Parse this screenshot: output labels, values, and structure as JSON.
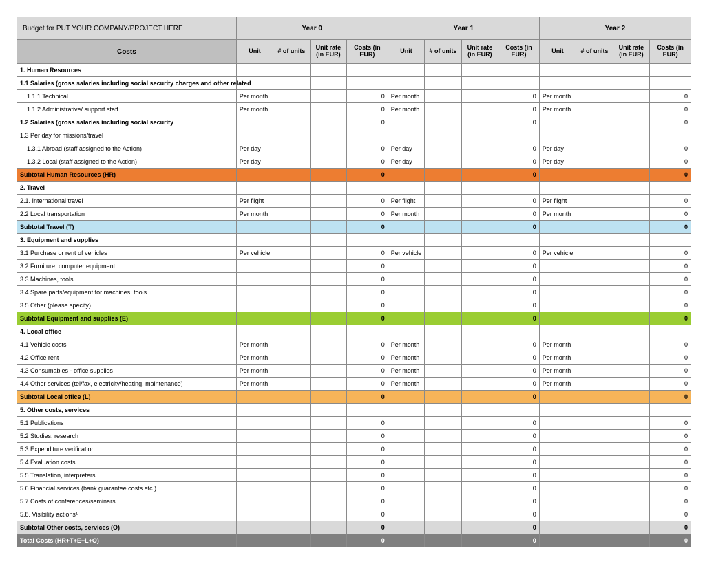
{
  "title": "Budget for PUT YOUR COMPANY/PROJECT HERE",
  "years": [
    "Year 0",
    "Year 1",
    "Year 2"
  ],
  "costs_header": "Costs",
  "sub_headers": [
    "Unit",
    "# of units",
    "Unit rate (in EUR)",
    "Costs (in EUR)"
  ],
  "zero": "0",
  "colors": {
    "header_light": "#d9d9d9",
    "header_dark": "#bfbfbf",
    "hr": "#ed7d31",
    "travel": "#bde2f2",
    "equip": "#9acd32",
    "local": "#f6b459",
    "other": "#d9d9d9",
    "total": "#808080",
    "border": "#8a8a8a"
  },
  "units": {
    "per_month": "Per month",
    "per_day": "Per day",
    "per_flight": "Per flight",
    "per_vehicle": "Per vehicle"
  },
  "rows": {
    "s1": "1. Human Resources",
    "s11": "1.1 Salaries (gross salaries including social security charges and other related",
    "s111": "1.1.1 Technical",
    "s112": "1.1.2 Administrative/ support staff",
    "s12": "1.2 Salaries (gross salaries including social security",
    "s13": "1.3 Per day for missions/travel",
    "s131": "1.3.1 Abroad (staff assigned to the Action)",
    "s132": "1.3.2 Local (staff assigned to the Action)",
    "sub1": "Subtotal Human Resources (HR)",
    "s2": "2. Travel",
    "s21": "2.1. International travel",
    "s22": "2.2 Local transportation",
    "sub2": "Subtotal Travel (T)",
    "s3": "3. Equipment and supplies",
    "s31": "3.1 Purchase or rent of vehicles",
    "s32": "3.2 Furniture, computer equipment",
    "s33": "3.3 Machines, tools…",
    "s34": "3.4 Spare parts/equipment for machines, tools",
    "s35": "3.5 Other (please specify)",
    "sub3": "Subtotal Equipment and supplies (E)",
    "s4": "4. Local office",
    "s41": "4.1 Vehicle costs",
    "s42": "4.2 Office rent",
    "s43": "4.3 Consumables - office supplies",
    "s44": "4.4 Other services (tel/fax, electricity/heating, maintenance)",
    "sub4": "Subtotal Local office (L)",
    "s5": "5. Other costs, services",
    "s51": "5.1 Publications",
    "s52": "5.2 Studies, research",
    "s53": "5.3 Expenditure verification",
    "s54": "5.4 Evaluation costs",
    "s55": "5.5 Translation, interpreters",
    "s56": "5.6 Financial services (bank guarantee costs etc.)",
    "s57": "5.7 Costs of conferences/seminars",
    "s58": "5.8. Visibility actions¹",
    "sub5": "Subtotal Other costs, services (O)",
    "total": "Total Costs (HR+T+E+L+O)"
  }
}
